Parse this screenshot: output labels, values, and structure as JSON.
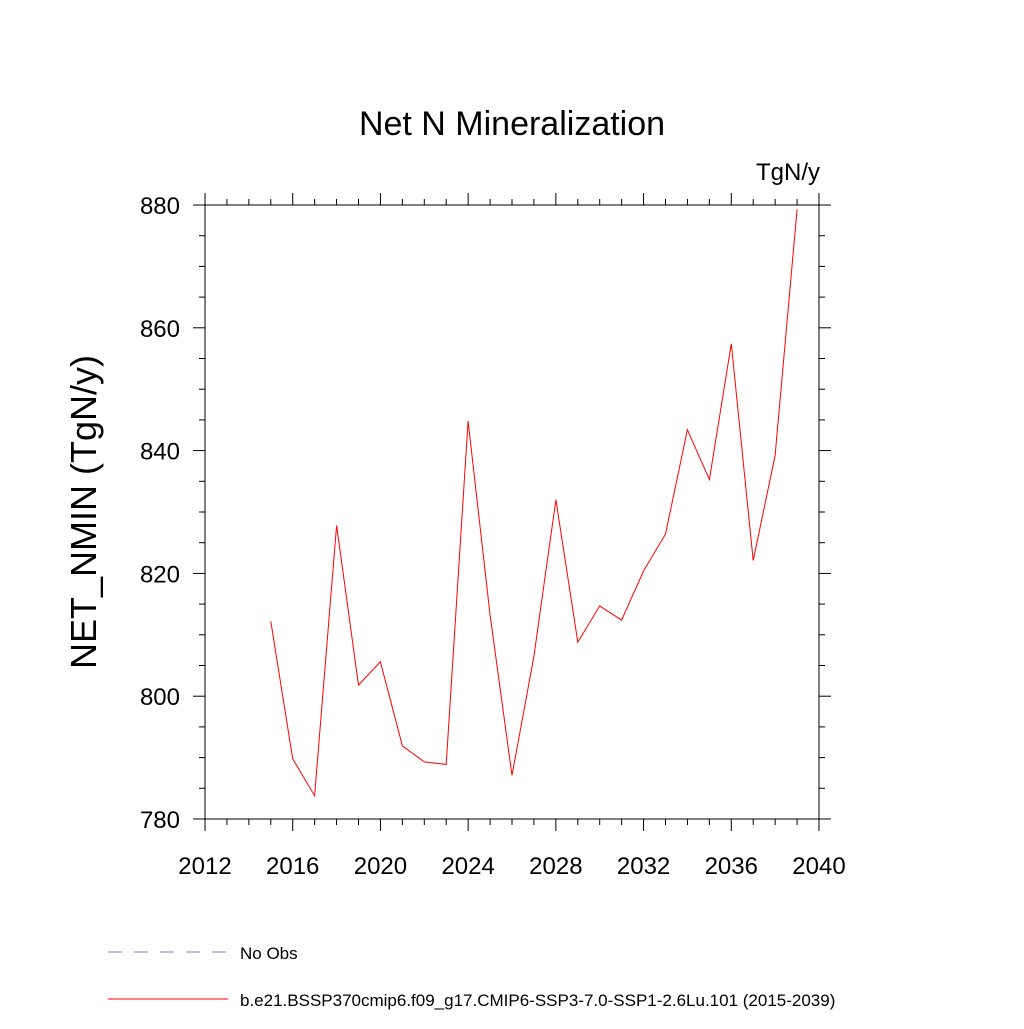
{
  "chart_data": {
    "type": "line",
    "title": "Net N Mineralization",
    "units": "TgN/y",
    "ylabel": "NET_NMIN  (TgN/y)",
    "xlabel": "",
    "xlim": [
      2012,
      2040
    ],
    "ylim": [
      780,
      880
    ],
    "x_ticks": [
      2012,
      2016,
      2020,
      2024,
      2028,
      2032,
      2036,
      2040
    ],
    "y_ticks": [
      780,
      800,
      820,
      840,
      860,
      880
    ],
    "series": [
      {
        "name": "b.e21.BSSP370cmip6.f09_g17.CMIP6-SSP3-7.0-SSP1-2.6Lu.101 (2015-2039)",
        "color": "#ff0000",
        "style": "solid",
        "x": [
          2015,
          2016,
          2017,
          2018,
          2019,
          2020,
          2021,
          2022,
          2023,
          2024,
          2025,
          2026,
          2027,
          2028,
          2029,
          2030,
          2031,
          2032,
          2033,
          2034,
          2035,
          2036,
          2037,
          2038,
          2039
        ],
        "values": [
          812.2,
          789.8,
          783.8,
          827.8,
          801.8,
          805.6,
          791.9,
          789.3,
          788.9,
          844.8,
          813.2,
          787.1,
          806.5,
          832.0,
          808.8,
          814.7,
          812.4,
          820.4,
          826.4,
          843.4,
          835.3,
          857.4,
          822.1,
          839.2,
          879.3
        ]
      }
    ],
    "legend": [
      {
        "label": "No Obs",
        "color": "#8080c0",
        "style": "dashed"
      },
      {
        "label": "b.e21.BSSP370cmip6.f09_g17.CMIP6-SSP3-7.0-SSP1-2.6Lu.101 (2015-2039)",
        "color": "#ff0000",
        "style": "solid"
      }
    ]
  }
}
